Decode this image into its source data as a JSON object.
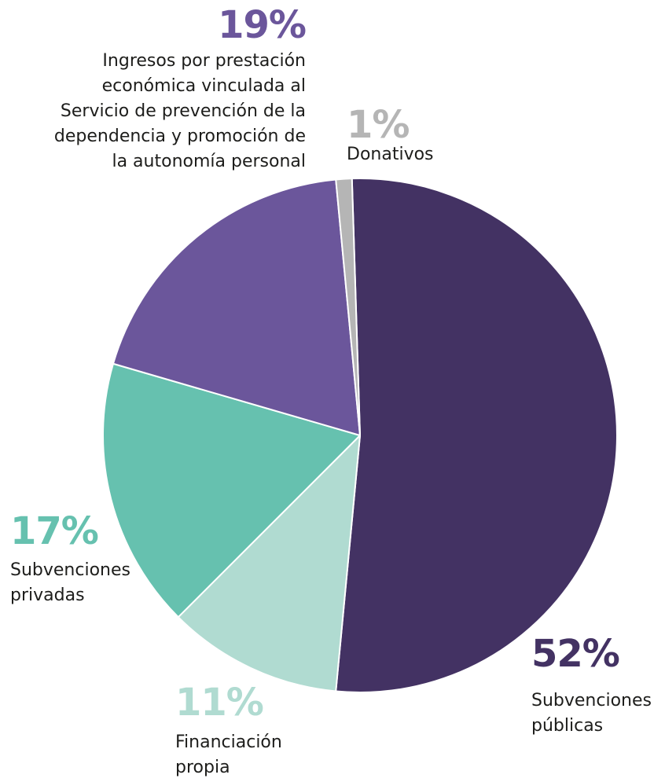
{
  "chart_data": {
    "type": "pie",
    "start_angle_deg": -1.8,
    "direction": "clockwise",
    "slices": [
      {
        "label": "Subvenciones públicas",
        "label_lines": [
          "Subvenciones",
          "públicas"
        ],
        "value": 52,
        "pct_label": "52%",
        "color": "#433263",
        "label_color": "#433263"
      },
      {
        "label": "Financiación propia",
        "label_lines": [
          "Financiación",
          "propia"
        ],
        "value": 11,
        "pct_label": "11%",
        "color": "#b0dbd1",
        "label_color": "#b0dbd1"
      },
      {
        "label": "Subvenciones privadas",
        "label_lines": [
          "Subvenciones",
          "privadas"
        ],
        "value": 17,
        "pct_label": "17%",
        "color": "#66c1af",
        "label_color": "#66c1af"
      },
      {
        "label": "Ingresos por prestación económica vinculada al Servicio de prevención de la dependencia y promoción de la autonomía personal",
        "label_lines": [
          "Ingresos por prestación",
          "económica vinculada al",
          "Servicio de prevención de la",
          "dependencia y promoción de",
          "la autonomía personal"
        ],
        "value": 19,
        "pct_label": "19%",
        "color": "#6b569b",
        "label_color": "#6b569b"
      },
      {
        "label": "Donativos",
        "label_lines": [
          "Donativos"
        ],
        "value": 1,
        "pct_label": "1%",
        "color": "#b5b5b5",
        "label_color": "#b5b5b5"
      }
    ]
  }
}
